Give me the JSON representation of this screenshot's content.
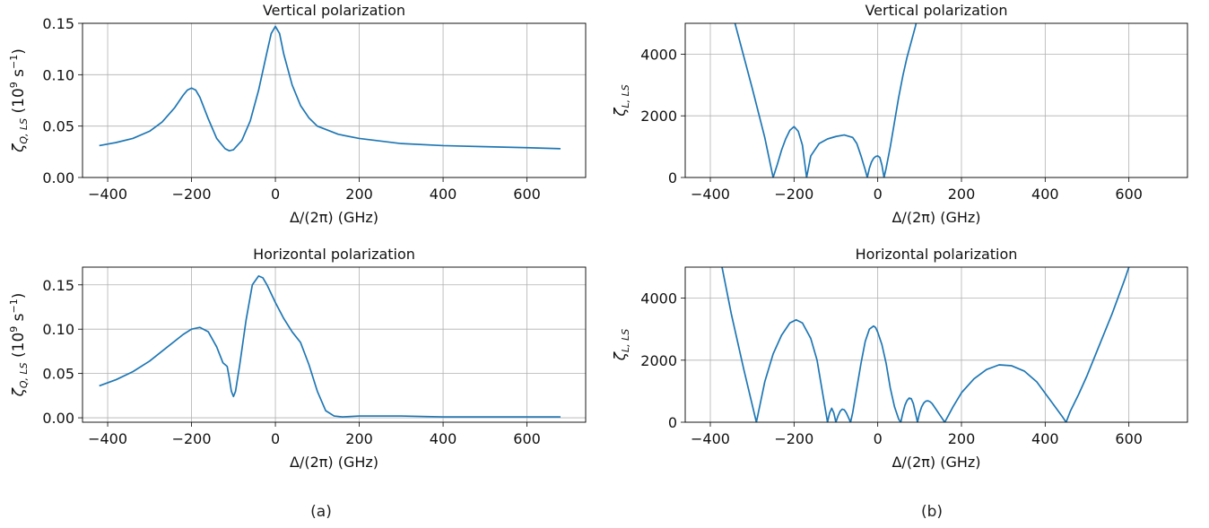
{
  "figure": {
    "captions": [
      "(a)",
      "(b)"
    ],
    "line_color": "#1f77b4",
    "grid": true
  },
  "chart_data": [
    {
      "type": "line",
      "panel": "(a) top",
      "title": "Vertical polarization",
      "xlabel": "Δ/(2π) (GHz)",
      "ylabel": "ζ_{Q,LS} (10^9 s^-1)",
      "ylabel_parts": {
        "symbol": "ζ",
        "sub": "Q, LS",
        "unit_pre": "(10",
        "unit_exp": "9",
        "unit_mid": " s",
        "unit_exp2": "−1",
        "unit_post": ")"
      },
      "xlim": [
        -460,
        740
      ],
      "ylim": [
        0.0,
        0.15
      ],
      "xticks": [
        -400,
        -200,
        0,
        200,
        400,
        600
      ],
      "xtick_labels": [
        "−400",
        "−200",
        "0",
        "200",
        "400",
        "600"
      ],
      "yticks": [
        0.0,
        0.05,
        0.1,
        0.15
      ],
      "ytick_labels": [
        "0.00",
        "0.05",
        "0.10",
        "0.15"
      ],
      "series": [
        {
          "x": [
            -420,
            -380,
            -340,
            -300,
            -270,
            -240,
            -220,
            -210,
            -200,
            -190,
            -180,
            -160,
            -140,
            -120,
            -110,
            -100,
            -80,
            -60,
            -40,
            -20,
            -10,
            0,
            10,
            20,
            40,
            60,
            80,
            100,
            150,
            200,
            300,
            400,
            500,
            600,
            680
          ],
          "y": [
            0.031,
            0.034,
            0.038,
            0.045,
            0.054,
            0.068,
            0.08,
            0.085,
            0.087,
            0.085,
            0.078,
            0.057,
            0.038,
            0.028,
            0.026,
            0.027,
            0.036,
            0.055,
            0.085,
            0.122,
            0.14,
            0.147,
            0.14,
            0.12,
            0.09,
            0.07,
            0.058,
            0.05,
            0.042,
            0.038,
            0.033,
            0.031,
            0.03,
            0.029,
            0.028
          ]
        }
      ]
    },
    {
      "type": "line",
      "panel": "(a) bottom",
      "title": "Horizontal polarization",
      "xlabel": "Δ/(2π) (GHz)",
      "ylabel": "ζ_{Q,LS} (10^9 s^-1)",
      "ylabel_parts": {
        "symbol": "ζ",
        "sub": "Q, LS",
        "unit_pre": "(10",
        "unit_exp": "9",
        "unit_mid": " s",
        "unit_exp2": "−1",
        "unit_post": ")"
      },
      "xlim": [
        -460,
        740
      ],
      "ylim": [
        -0.005,
        0.17
      ],
      "xticks": [
        -400,
        -200,
        0,
        200,
        400,
        600
      ],
      "xtick_labels": [
        "−400",
        "−200",
        "0",
        "200",
        "400",
        "600"
      ],
      "yticks": [
        0.0,
        0.05,
        0.1,
        0.15
      ],
      "ytick_labels": [
        "0.00",
        "0.05",
        "0.10",
        "0.15"
      ],
      "series": [
        {
          "x": [
            -420,
            -380,
            -340,
            -300,
            -260,
            -220,
            -200,
            -180,
            -160,
            -140,
            -125,
            -115,
            -110,
            -105,
            -100,
            -95,
            -85,
            -70,
            -55,
            -40,
            -30,
            -20,
            -10,
            0,
            20,
            40,
            60,
            80,
            100,
            120,
            140,
            160,
            200,
            300,
            400,
            500,
            600,
            680
          ],
          "y": [
            0.036,
            0.043,
            0.052,
            0.064,
            0.079,
            0.094,
            0.1,
            0.102,
            0.097,
            0.08,
            0.062,
            0.058,
            0.045,
            0.03,
            0.024,
            0.03,
            0.06,
            0.11,
            0.15,
            0.16,
            0.158,
            0.15,
            0.14,
            0.13,
            0.112,
            0.097,
            0.085,
            0.06,
            0.03,
            0.008,
            0.002,
            0.001,
            0.002,
            0.002,
            0.001,
            0.001,
            0.001,
            0.001
          ]
        }
      ]
    },
    {
      "type": "line",
      "panel": "(b) top",
      "title": "Vertical polarization",
      "xlabel": "Δ/(2π) (GHz)",
      "ylabel": "ζ_{L,LS}",
      "ylabel_parts": {
        "symbol": "ζ",
        "sub": "L, LS"
      },
      "xlim": [
        -460,
        740
      ],
      "ylim": [
        0,
        5000
      ],
      "xticks": [
        -400,
        -200,
        0,
        200,
        400,
        600
      ],
      "xtick_labels": [
        "−400",
        "−200",
        "0",
        "200",
        "400",
        "600"
      ],
      "yticks": [
        0,
        2000,
        4000
      ],
      "ytick_labels": [
        "0",
        "2000",
        "4000"
      ],
      "series": [
        {
          "x": [
            -345,
            -300,
            -270,
            -250,
            -240,
            -230,
            -220,
            -210,
            -200,
            -190,
            -180,
            -170,
            -160,
            -140,
            -120,
            -100,
            -80,
            -60,
            -50,
            -40,
            -30,
            -25,
            -20,
            -15,
            -10,
            -5,
            0,
            5,
            10,
            15,
            20,
            30,
            40,
            50,
            60,
            70,
            80,
            90,
            95
          ],
          "y": [
            5200,
            2900,
            1300,
            0,
            420,
            880,
            1250,
            1530,
            1650,
            1500,
            1050,
            0,
            700,
            1100,
            1250,
            1330,
            1380,
            1300,
            1100,
            700,
            250,
            0,
            300,
            500,
            620,
            680,
            700,
            650,
            400,
            0,
            300,
            1000,
            1800,
            2600,
            3300,
            3900,
            4400,
            4900,
            5200
          ]
        }
      ]
    },
    {
      "type": "line",
      "panel": "(b) bottom",
      "title": "Horizontal polarization",
      "xlabel": "Δ/(2π) (GHz)",
      "ylabel": "ζ_{L,LS}",
      "ylabel_parts": {
        "symbol": "ζ",
        "sub": "L, LS"
      },
      "xlim": [
        -460,
        740
      ],
      "ylim": [
        0,
        5000
      ],
      "xticks": [
        -400,
        -200,
        0,
        200,
        400,
        600
      ],
      "xtick_labels": [
        "−400",
        "−200",
        "0",
        "200",
        "400",
        "600"
      ],
      "yticks": [
        0,
        2000,
        4000
      ],
      "ytick_labels": [
        "0",
        "2000",
        "4000"
      ],
      "series": [
        {
          "x": [
            -375,
            -350,
            -320,
            -290,
            -270,
            -250,
            -230,
            -210,
            -195,
            -180,
            -160,
            -145,
            -130,
            -120,
            -115,
            -110,
            -105,
            -100,
            -95,
            -90,
            -85,
            -80,
            -75,
            -70,
            -65,
            -60,
            -50,
            -40,
            -30,
            -20,
            -10,
            -5,
            0,
            10,
            20,
            30,
            40,
            50,
            55,
            60,
            65,
            70,
            75,
            80,
            85,
            90,
            95,
            100,
            105,
            110,
            115,
            120,
            125,
            130,
            140,
            150,
            160,
            180,
            200,
            230,
            260,
            290,
            320,
            350,
            380,
            410,
            440,
            450,
            460,
            480,
            500,
            530,
            560,
            590,
            605
          ],
          "y": [
            5200,
            3500,
            1700,
            0,
            1300,
            2200,
            2800,
            3200,
            3300,
            3200,
            2700,
            2000,
            800,
            0,
            300,
            450,
            300,
            0,
            200,
            350,
            420,
            400,
            300,
            150,
            0,
            300,
            1100,
            1900,
            2600,
            3000,
            3100,
            3050,
            2900,
            2500,
            1900,
            1100,
            500,
            100,
            0,
            300,
            550,
            700,
            780,
            760,
            600,
            300,
            0,
            300,
            500,
            620,
            680,
            690,
            660,
            600,
            400,
            200,
            0,
            500,
            950,
            1400,
            1700,
            1850,
            1820,
            1650,
            1300,
            750,
            200,
            0,
            350,
            900,
            1500,
            2500,
            3500,
            4600,
            5200
          ]
        }
      ]
    }
  ]
}
